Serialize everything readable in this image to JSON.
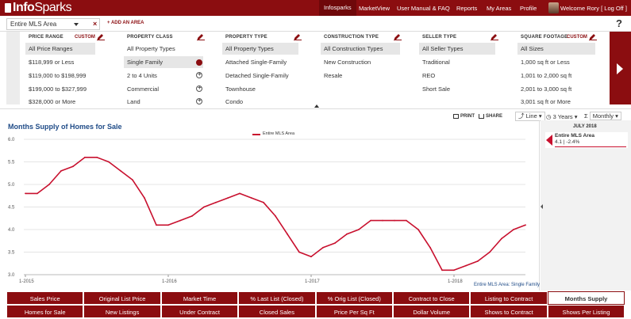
{
  "brand": {
    "logo_text_bold": "Info",
    "logo_text_thin": "Sparks"
  },
  "nav": {
    "items": [
      "Infosparks",
      "MarketView",
      "User Manual & FAQ",
      "Reports",
      "My Areas",
      "Profile"
    ],
    "welcome": "Welcome Rory",
    "logoff": "[ Log Off ]"
  },
  "area": {
    "selected": "Entire MLS Area",
    "clear": "×",
    "add": "+ ADD AN AREA",
    "help": "?"
  },
  "filters": {
    "price": {
      "header": "PRICE RANGE",
      "custom": "CUSTOM",
      "options": [
        "All Price Ranges",
        "$118,999 or Less",
        "$119,000 to $198,999",
        "$199,000 to $327,999",
        "$328,000 or More"
      ]
    },
    "class": {
      "header": "PROPERTY CLASS",
      "options": [
        "All Property Types",
        "Single Family",
        "2 to 4 Units",
        "Commercial",
        "Land"
      ]
    },
    "type": {
      "header": "PROPERTY TYPE",
      "options": [
        "All Property Types",
        "Attached Single-Family",
        "Detached Single-Family",
        "Townhouse",
        "Condo"
      ]
    },
    "construction": {
      "header": "CONSTRUCTION TYPE",
      "options": [
        "All Construction Types",
        "New Construction",
        "Resale"
      ]
    },
    "seller": {
      "header": "SELLER TYPE",
      "options": [
        "All Seller Types",
        "Traditional",
        "REO",
        "Short Sale"
      ]
    },
    "sqft": {
      "header": "SQUARE FOOTAGE",
      "custom": "CUSTOM",
      "options": [
        "All Sizes",
        "1,000 sq ft or Less",
        "1,001 to 2,000 sq ft",
        "2,001 to 3,000 sq ft",
        "3,001 sq ft or More"
      ]
    }
  },
  "tools": {
    "print": "PRINT",
    "share": "SHARE",
    "chart_type": "Line",
    "period": "3 Years",
    "frequency": "Monthly"
  },
  "chart": {
    "title": "Months Supply of Homes for Sale",
    "legend": "Entire MLS Area",
    "footer": "Entire MLS Area: Single Family"
  },
  "side": {
    "date": "JULY 2018",
    "name": "Entire MLS Area",
    "value": "4.1 | -2.4%"
  },
  "tabs": {
    "row1": [
      "Sales Price",
      "Original List Price",
      "Market Time",
      "% Last List (Closed)",
      "% Orig List (Closed)",
      "Contract to Close",
      "Listing to Contract",
      "Months Supply"
    ],
    "row2": [
      "Homes for Sale",
      "New Listings",
      "Under Contract",
      "Closed Sales",
      "Price Per Sq Ft",
      "Dollar Volume",
      "Shows to Contract",
      "Shows Per Listing"
    ]
  },
  "colors": {
    "brand": "#8b0d10",
    "series": "#c8102e",
    "title": "#1f4b87"
  },
  "chart_data": {
    "type": "line",
    "title": "Months Supply of Homes for Sale",
    "xlabel": "",
    "ylabel": "",
    "ylim": [
      3.0,
      6.0
    ],
    "yticks": [
      "3.0",
      "3.5",
      "4.0",
      "4.5",
      "5.0",
      "5.5",
      "6.0"
    ],
    "xticks": [
      {
        "label": "1-2015",
        "index": 0
      },
      {
        "label": "1-2016",
        "index": 12
      },
      {
        "label": "1-2017",
        "index": 24
      },
      {
        "label": "1-2018",
        "index": 36
      }
    ],
    "series": [
      {
        "name": "Entire MLS Area",
        "values": [
          4.8,
          4.8,
          5.0,
          5.3,
          5.4,
          5.6,
          5.6,
          5.5,
          5.3,
          5.1,
          4.7,
          4.1,
          4.1,
          4.2,
          4.3,
          4.5,
          4.6,
          4.7,
          4.8,
          4.7,
          4.6,
          4.3,
          3.9,
          3.5,
          3.4,
          3.6,
          3.7,
          3.9,
          4.0,
          4.2,
          4.2,
          4.2,
          4.2,
          4.0,
          3.6,
          3.1,
          3.1,
          3.2,
          3.3,
          3.5,
          3.8,
          4.0,
          4.1
        ]
      }
    ]
  }
}
